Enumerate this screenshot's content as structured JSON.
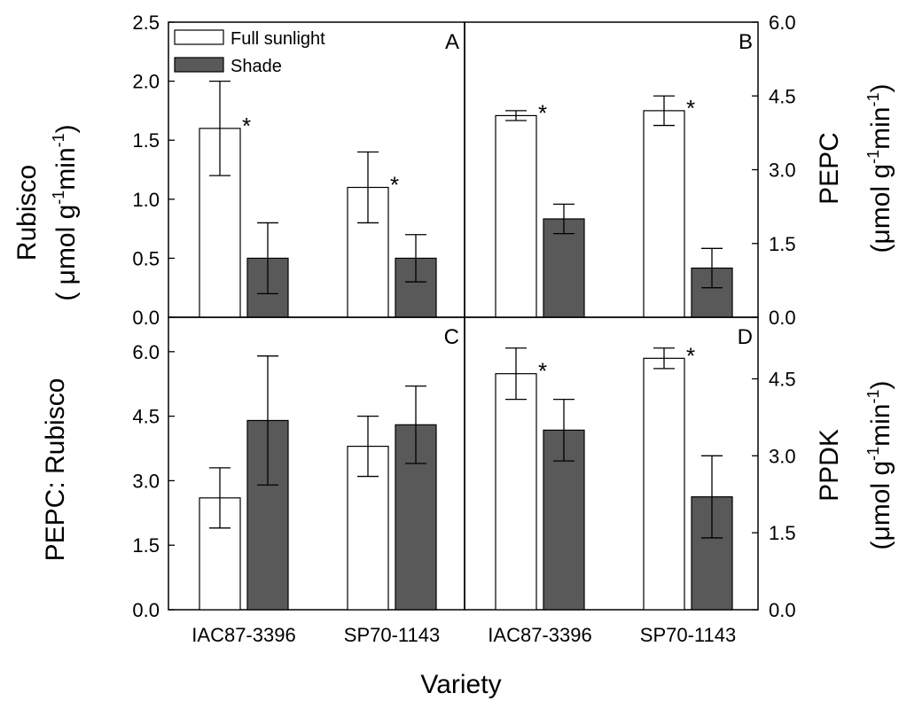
{
  "chart_data": [
    {
      "id": "A",
      "type": "bar",
      "panel_label": "A",
      "categories": [
        "IAC87-3396",
        "SP70-1143"
      ],
      "series": [
        {
          "name": "Full sunlight",
          "values": [
            1.6,
            1.1
          ],
          "errors": [
            0.4,
            0.3
          ],
          "significant": [
            true,
            true
          ]
        },
        {
          "name": "Shade",
          "values": [
            0.5,
            0.5
          ],
          "errors": [
            0.3,
            0.2
          ],
          "significant": [
            false,
            false
          ]
        }
      ],
      "ylim": [
        0,
        2.5
      ],
      "yticks": [
        "0.0",
        "0.5",
        "1.0",
        "1.5",
        "2.0",
        "2.5"
      ],
      "y_axis_side": "left",
      "ylabel_lines": [
        "Rubisco",
        "( μmol g",
        "-1",
        "min",
        "-1",
        ")"
      ]
    },
    {
      "id": "B",
      "type": "bar",
      "panel_label": "B",
      "categories": [
        "IAC87-3396",
        "SP70-1143"
      ],
      "series": [
        {
          "name": "Full sunlight",
          "values": [
            4.1,
            4.2
          ],
          "errors": [
            0.1,
            0.3
          ],
          "significant": [
            true,
            true
          ]
        },
        {
          "name": "Shade",
          "values": [
            2.0,
            1.0
          ],
          "errors": [
            0.3,
            0.4
          ],
          "significant": [
            false,
            false
          ]
        }
      ],
      "ylim": [
        0,
        6.0
      ],
      "yticks": [
        "0.0",
        "1.5",
        "3.0",
        "4.5",
        "6.0"
      ],
      "y_axis_side": "right",
      "ylabel_lines": [
        "PEPC",
        "(μmol g",
        "-1",
        "min",
        "-1",
        ")"
      ]
    },
    {
      "id": "C",
      "type": "bar",
      "panel_label": "C",
      "categories": [
        "IAC87-3396",
        "SP70-1143"
      ],
      "series": [
        {
          "name": "Full sunlight",
          "values": [
            2.6,
            3.8
          ],
          "errors": [
            0.7,
            0.7
          ],
          "significant": [
            false,
            false
          ]
        },
        {
          "name": "Shade",
          "values": [
            4.4,
            4.3
          ],
          "errors": [
            1.5,
            0.9
          ],
          "significant": [
            false,
            false
          ]
        }
      ],
      "ylim": [
        0,
        6.8
      ],
      "yticks": [
        "0.0",
        "1.5",
        "3.0",
        "4.5",
        "6.0"
      ],
      "y_axis_side": "left",
      "ylabel_lines": [
        "PEPC: Rubisco"
      ],
      "xticklabels": [
        "IAC87-3396",
        "SP70-1143"
      ]
    },
    {
      "id": "D",
      "type": "bar",
      "panel_label": "D",
      "categories": [
        "IAC87-3396",
        "SP70-1143"
      ],
      "series": [
        {
          "name": "Full sunlight",
          "values": [
            4.6,
            4.9
          ],
          "errors": [
            0.5,
            0.2
          ],
          "significant": [
            true,
            true
          ]
        },
        {
          "name": "Shade",
          "values": [
            3.5,
            2.2
          ],
          "errors": [
            0.6,
            0.8
          ],
          "significant": [
            false,
            false
          ]
        }
      ],
      "ylim": [
        0,
        5.7
      ],
      "yticks": [
        "0.0",
        "1.5",
        "3.0",
        "4.5"
      ],
      "y_axis_side": "right",
      "ylabel_lines": [
        "PPDK",
        "(μmol g",
        "-1",
        "min",
        "-1",
        ")"
      ],
      "xticklabels": [
        "IAC87-3396",
        "SP70-1143"
      ]
    }
  ],
  "legend": {
    "items": [
      {
        "label": "Full sunlight",
        "color": "#ffffff"
      },
      {
        "label": "Shade",
        "color": "#595959"
      }
    ],
    "placement": "top-left of panel A"
  },
  "xlabel": "Variety",
  "significance_marker": "*",
  "colors": {
    "full_sunlight": "#ffffff",
    "shade": "#595959",
    "outline": "#000000"
  }
}
